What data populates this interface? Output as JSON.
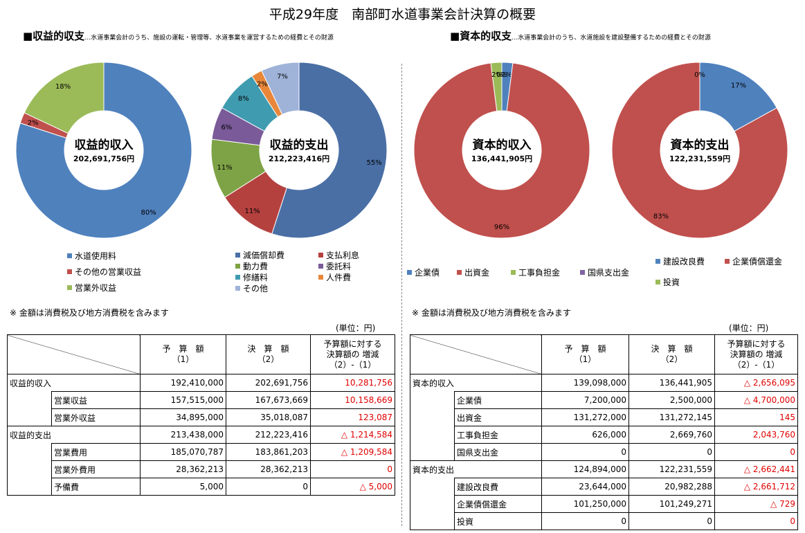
{
  "title": "平成29年度　南部町水道事業会計決算の概要",
  "sections": {
    "revenue_expense": {
      "heading": "■収益的収支",
      "sub": "…水道事業会計のうち、施設の運転・管理等、水道事業を運営するための経費とその財源"
    },
    "capital": {
      "heading": "■資本的収支",
      "sub": "…水道事業会計のうち、水道施設を建設整備するための経費とその財源"
    }
  },
  "chart_data": [
    {
      "type": "pie",
      "donut": true,
      "title": "収益的収入",
      "amount": "202,691,756円",
      "categories": [
        "水道使用料",
        "その他の営業収益",
        "営業外収益"
      ],
      "values": [
        80,
        2,
        18
      ],
      "labels": [
        "80%",
        "2%",
        "18%"
      ],
      "colors": [
        "#4f81bd",
        "#c0504d",
        "#9bbb59"
      ]
    },
    {
      "type": "pie",
      "donut": true,
      "title": "収益的支出",
      "amount": "212,223,416円",
      "categories": [
        "減価償却費",
        "支払利息",
        "動力費",
        "委託料",
        "修繕料",
        "人件費",
        "その他"
      ],
      "values": [
        55,
        11,
        11,
        6,
        8,
        2,
        7
      ],
      "labels": [
        "55%",
        "11%",
        "11%",
        "6%",
        "8%",
        "2%",
        "7%"
      ],
      "colors": [
        "#4a6fa5",
        "#b5413f",
        "#7ea346",
        "#7a5a99",
        "#3f9bb0",
        "#e8873a",
        "#9fb3d9"
      ]
    },
    {
      "type": "pie",
      "donut": true,
      "title": "資本的収入",
      "amount": "136,441,905円",
      "categories": [
        "企業債",
        "出資金",
        "工事負担金",
        "国県支出金"
      ],
      "values": [
        2,
        96,
        2,
        0
      ],
      "labels": [
        "2%",
        "96%",
        "2%",
        "0%"
      ],
      "colors": [
        "#4f81bd",
        "#c0504d",
        "#9bbb59",
        "#8064a2"
      ]
    },
    {
      "type": "pie",
      "donut": true,
      "title": "資本的支出",
      "amount": "122,231,559円",
      "categories": [
        "建設改良費",
        "企業債償還金",
        "投資"
      ],
      "values": [
        17,
        83,
        0
      ],
      "labels": [
        "17%",
        "83%",
        "0%"
      ],
      "colors": [
        "#4f81bd",
        "#c0504d",
        "#9bbb59"
      ]
    }
  ],
  "note": "※ 金額は消費税及び地方消費税を含みます",
  "unit": "(単位：円)",
  "table_headers": {
    "budget": [
      "予　算　額",
      "（1）"
    ],
    "settled": [
      "決　算　額",
      "（2）"
    ],
    "diff": [
      "予算額に対する",
      "決算額の 増減",
      "（2）-（1）"
    ]
  },
  "table_left": [
    {
      "cat": "収益的収入",
      "item": "",
      "budget": "192,410,000",
      "settled": "202,691,756",
      "diff": "10,281,756"
    },
    {
      "cat": "",
      "item": "営業収益",
      "budget": "157,515,000",
      "settled": "167,673,669",
      "diff": "10,158,669"
    },
    {
      "cat": "",
      "item": "営業外収益",
      "budget": "34,895,000",
      "settled": "35,018,087",
      "diff": "123,087"
    },
    {
      "cat": "収益的支出",
      "item": "",
      "budget": "213,438,000",
      "settled": "212,223,416",
      "diff": "△ 1,214,584"
    },
    {
      "cat": "",
      "item": "営業費用",
      "budget": "185,070,787",
      "settled": "183,861,203",
      "diff": "△ 1,209,584"
    },
    {
      "cat": "",
      "item": "営業外費用",
      "budget": "28,362,213",
      "settled": "28,362,213",
      "diff": "0"
    },
    {
      "cat": "",
      "item": "予備費",
      "budget": "5,000",
      "settled": "0",
      "diff": "△ 5,000"
    }
  ],
  "table_right": [
    {
      "cat": "資本的収入",
      "item": "",
      "budget": "139,098,000",
      "settled": "136,441,905",
      "diff": "△ 2,656,095"
    },
    {
      "cat": "",
      "item": "企業債",
      "budget": "7,200,000",
      "settled": "2,500,000",
      "diff": "△ 4,700,000"
    },
    {
      "cat": "",
      "item": "出資金",
      "budget": "131,272,000",
      "settled": "131,272,145",
      "diff": "145"
    },
    {
      "cat": "",
      "item": "工事負担金",
      "budget": "626,000",
      "settled": "2,669,760",
      "diff": "2,043,760"
    },
    {
      "cat": "",
      "item": "国県支出金",
      "budget": "0",
      "settled": "0",
      "diff": "0"
    },
    {
      "cat": "資本的支出",
      "item": "",
      "budget": "124,894,000",
      "settled": "122,231,559",
      "diff": "△ 2,662,441"
    },
    {
      "cat": "",
      "item": "建設改良費",
      "budget": "23,644,000",
      "settled": "20,982,288",
      "diff": "△ 2,661,712"
    },
    {
      "cat": "",
      "item": "企業債償還金",
      "budget": "101,250,000",
      "settled": "101,249,271",
      "diff": "△ 729"
    },
    {
      "cat": "",
      "item": "投資",
      "budget": "0",
      "settled": "0",
      "diff": "0"
    }
  ]
}
